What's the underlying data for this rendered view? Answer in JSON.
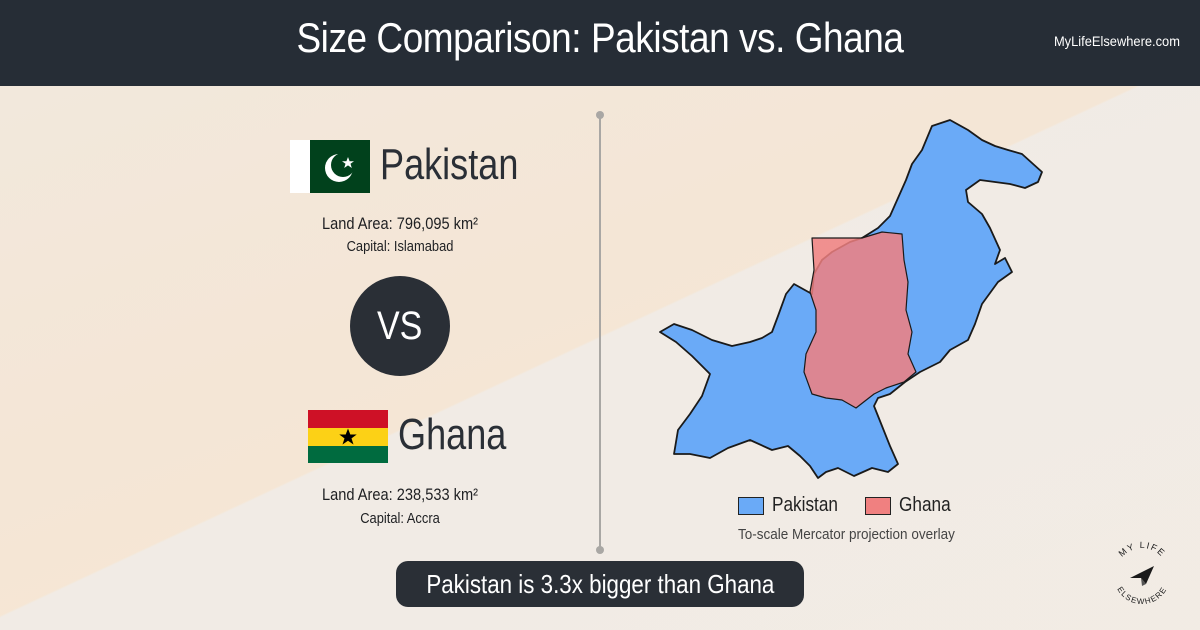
{
  "header": {
    "title": "Size Comparison: Pakistan vs. Ghana",
    "site": "MyLifeElsewhere.com"
  },
  "country1": {
    "name": "Pakistan",
    "land_area": "Land Area: 796,095 km²",
    "capital": "Capital: Islamabad",
    "flag_icon": "pakistan-flag-icon",
    "color": "#6aaaf7"
  },
  "vs": "VS",
  "country2": {
    "name": "Ghana",
    "land_area": "Land Area: 238,533 km²",
    "capital": "Capital: Accra",
    "flag_icon": "ghana-flag-icon",
    "color": "#f08080"
  },
  "legend": {
    "items": [
      {
        "label": "Pakistan",
        "color": "#6aaaf7"
      },
      {
        "label": "Ghana",
        "color": "#f08080"
      }
    ],
    "note": "To-scale Mercator projection overlay"
  },
  "verdict": "Pakistan is 3.3x bigger than Ghana",
  "logo": {
    "text_top": "MY LIFE",
    "text_bottom": "ELSEWHERE",
    "icon": "paper-plane-icon"
  },
  "colors": {
    "header_bg": "#262d36",
    "dark": "#2a2f36",
    "pakistan_green": "#01411c",
    "ghana_red": "#ce1126",
    "ghana_yellow": "#fcd116",
    "ghana_green": "#006b3f"
  }
}
